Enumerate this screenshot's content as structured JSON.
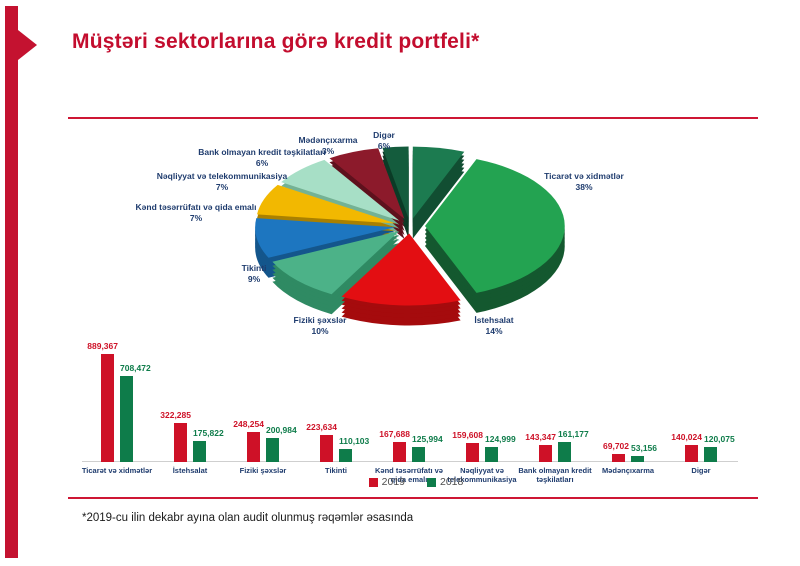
{
  "slide": {
    "title": "Müştəri sektorlarına görə kredit portfeli*",
    "footnote": "*2019-cu ilin dekabr ayına olan audit olunmuş rəqəmlər əsasında"
  },
  "colors": {
    "brand_red": "#C30D2E",
    "bar_red": "#CE1127",
    "bar_green": "#0E7C4A",
    "label_navy": "#1F3C6E"
  },
  "chart_data": [
    {
      "type": "pie",
      "unit": "%",
      "style": "3d-exploded",
      "legend_position": "callout-labels",
      "slices": [
        {
          "label": "Digər",
          "pct": 6,
          "color": "#1C7B50",
          "dark": "#114E32"
        },
        {
          "label": "Ticarət və xidmətlər",
          "pct": 38,
          "color": "#23A351",
          "dark": "#14582F"
        },
        {
          "label": "İstehsalat",
          "pct": 14,
          "color": "#E30E12",
          "dark": "#A50B0D"
        },
        {
          "label": "Fiziki şəxslər",
          "pct": 10,
          "color": "#4CB288",
          "dark": "#2F8A63"
        },
        {
          "label": "Tikinti",
          "pct": 9,
          "color": "#1D76C0",
          "dark": "#14568C"
        },
        {
          "label": "Kənd təsərrüfatı və qida emalı",
          "pct": 7,
          "color": "#F2B801",
          "dark": "#A98001"
        },
        {
          "label": "Nəqliyyat və telekommunikasiya",
          "pct": 7,
          "color": "#A7DFC6",
          "dark": "#74B294"
        },
        {
          "label": "Bank olmayan kredit təşkilatları",
          "pct": 6,
          "color": "#8C1A2B",
          "dark": "#5E111D"
        },
        {
          "label": "Mədənçıxarma",
          "pct": 3,
          "color": "#145C3D",
          "dark": "#0B3B26"
        }
      ]
    },
    {
      "type": "bar",
      "value_labels": true,
      "legend_position": "bottom-center",
      "categories": [
        "Ticarət və xidmətlər",
        "İstehsalat",
        "Fiziki şəxslər",
        "Tikinti",
        "Kənd təsərrüfatı və qida emalı",
        "Nəqliyyat və telekommunikasiya",
        "Bank olmayan kredit təşkilatları",
        "Mədənçıxarma",
        "Digər"
      ],
      "series": [
        {
          "name": "2019",
          "color": "#CE1127",
          "values": [
            889367,
            322285,
            248254,
            223634,
            167688,
            159608,
            143347,
            69702,
            140024
          ]
        },
        {
          "name": "2018",
          "color": "#0E7C4A",
          "values": [
            708472,
            175822,
            200984,
            110103,
            125994,
            124999,
            161177,
            53156,
            120075
          ]
        }
      ]
    }
  ]
}
